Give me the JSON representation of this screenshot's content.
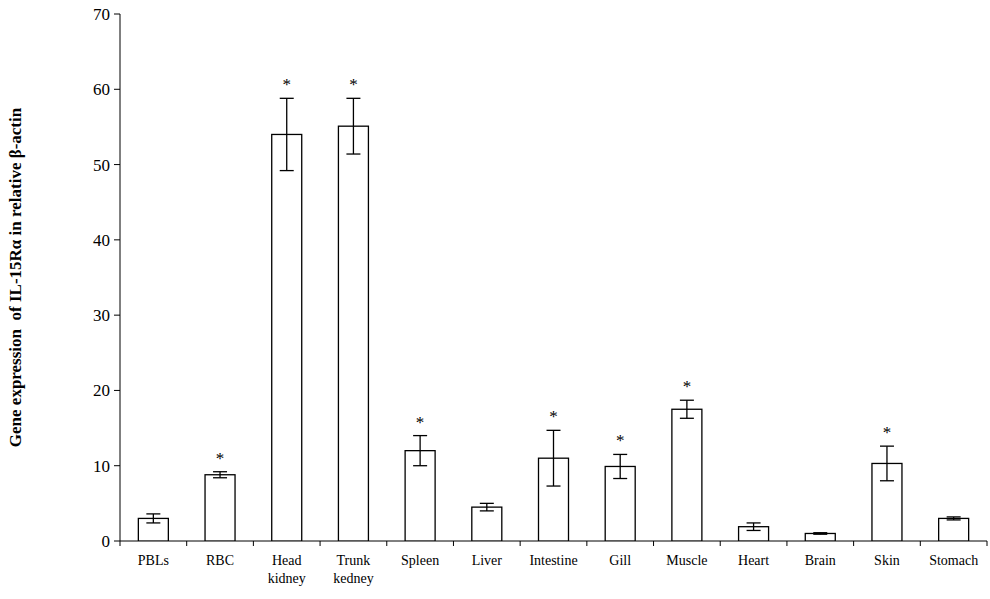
{
  "chart_data": {
    "type": "bar",
    "y_label": "Gene expression  of IL-15Rα in relative β-actin",
    "categories": [
      "PBLs",
      "RBC",
      "Head kidney",
      "Trunk kedney",
      "Spleen",
      "Liver",
      "Intestine",
      "Gill",
      "Muscle",
      "Heart",
      "Brain",
      "Skin",
      "Stomach"
    ],
    "values": [
      3.0,
      8.8,
      54.0,
      55.1,
      12.0,
      4.5,
      11.0,
      9.9,
      17.5,
      1.9,
      1.0,
      10.3,
      3.0
    ],
    "errors": [
      0.6,
      0.4,
      4.8,
      3.7,
      2.0,
      0.5,
      3.7,
      1.6,
      1.2,
      0.5,
      0.1,
      2.3,
      0.2
    ],
    "significance": [
      null,
      "*",
      "*",
      "*",
      "*",
      null,
      "*",
      "*",
      "*",
      null,
      null,
      "*",
      null
    ],
    "color": "#ffffff",
    "ylim": [
      0,
      70
    ],
    "yticks": [
      0,
      10,
      20,
      30,
      40,
      50,
      60,
      70
    ],
    "grid": false
  }
}
